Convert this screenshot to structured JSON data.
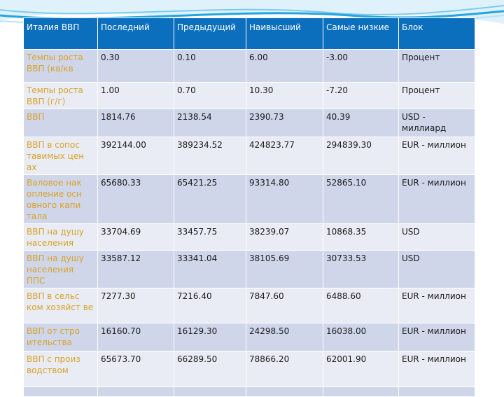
{
  "table": {
    "headers": [
      "Италия ВВП",
      "Последний",
      "Предыдущий",
      "Наивысший",
      "Самые низкие",
      "Блок"
    ],
    "rows": [
      [
        "Темпы роста ВВП (кв/кв",
        "0.30",
        "0.10",
        "6.00",
        "-3.00",
        "Процент"
      ],
      [
        "Темпы роста ВВП (г/г)",
        "1.00",
        "0.70",
        "10.30",
        "-7.20",
        "Процент"
      ],
      [
        "ВВП",
        "1814.76",
        "2138.54",
        "2390.73",
        "40.39",
        "USD - миллиард"
      ],
      [
        "ВВП в сопос тавимых цен ах",
        "392144.00",
        "389234.52",
        "424823.77",
        "294839.30",
        "EUR - миллион"
      ],
      [
        "Валовое нак опление осн овного капи тала",
        "65680.33",
        "65421.25",
        "93314.80",
        "52865.10",
        "EUR - миллион"
      ],
      [
        "ВВП на душу населения",
        "33704.69",
        "33457.75",
        "38239.07",
        "10868.35",
        "USD"
      ],
      [
        "ВВП на душу населения ППС",
        "33587.12",
        "33341.04",
        "38105.69",
        "30733.53",
        "USD"
      ],
      [
        "ВВП в сельс ком хозяйст ве",
        "7277.30",
        "7216.40",
        "7847.60",
        "6488.60",
        "EUR - миллион"
      ],
      [
        "ВВП от стро ительства",
        "16160.70",
        "16129.30",
        "24298.50",
        "16038.00",
        "EUR - миллион"
      ],
      [
        "ВВП с произ водством",
        "65673.70",
        "66289.50",
        "78866.20",
        "62001.90",
        "EUR - миллион"
      ]
    ]
  },
  "colors": {
    "header_bg": "#0b6fbd",
    "row_odd": "#cfd6ea",
    "row_even": "#e9ecf5",
    "label_text": "#d8a227",
    "decor_accent": "#23a6df"
  }
}
